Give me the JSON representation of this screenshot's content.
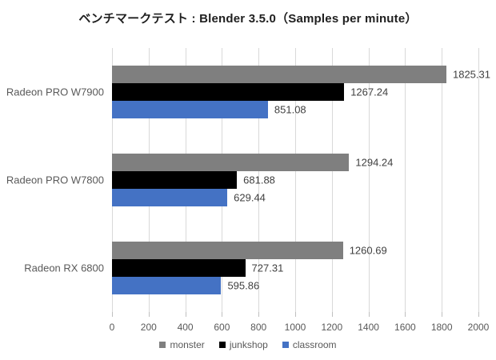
{
  "title": "ベンチマークテスト : Blender 3.5.0（Samples per minute）",
  "chart_data": {
    "type": "bar",
    "orientation": "horizontal",
    "title": "ベンチマークテスト : Blender 3.5.0（Samples per minute）",
    "categories": [
      "Radeon PRO W7900",
      "Radeon PRO W7800",
      "Radeon RX 6800"
    ],
    "series": [
      {
        "name": "monster",
        "color": "#7f7f7f",
        "values": [
          1825.31,
          1294.24,
          1260.69
        ]
      },
      {
        "name": "junkshop",
        "color": "#000000",
        "values": [
          1267.24,
          681.88,
          727.31
        ]
      },
      {
        "name": "classroom",
        "color": "#4472c4",
        "values": [
          851.08,
          629.44,
          595.86
        ]
      }
    ],
    "xlim": [
      0,
      2000
    ],
    "x_ticks": [
      0,
      200,
      400,
      600,
      800,
      1000,
      1200,
      1400,
      1600,
      1800,
      2000
    ],
    "grid": true,
    "value_labels": true,
    "value_label_decimals": 2,
    "legend_position": "bottom",
    "xlabel": "",
    "ylabel": ""
  },
  "colors": {
    "gridline": "#d9d9d9",
    "tick_mark": "#bfbfbf",
    "axis_text": "#595959",
    "value_text": "#3f3f3f",
    "title_text": "#1f1f1f"
  }
}
